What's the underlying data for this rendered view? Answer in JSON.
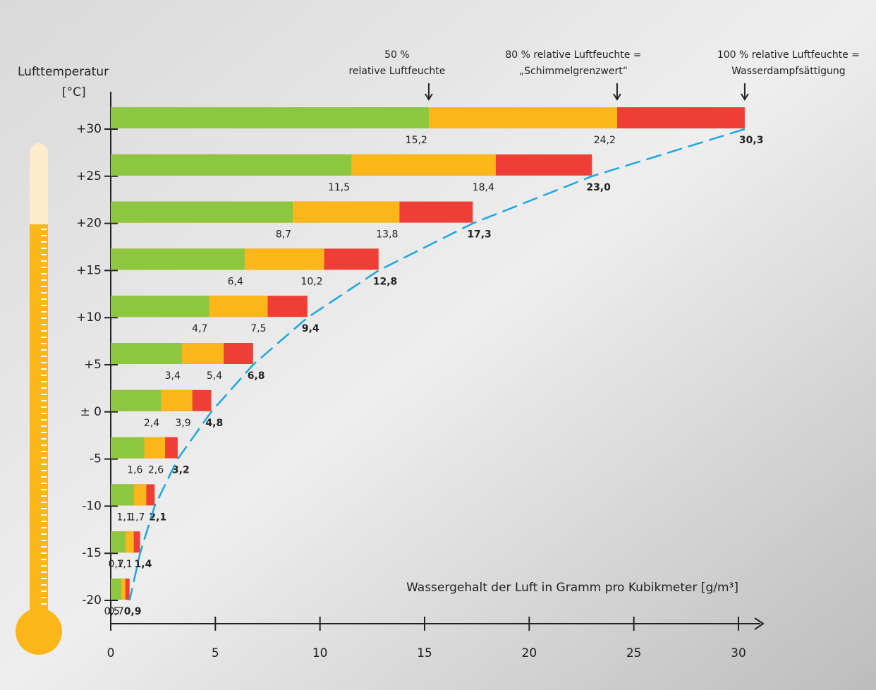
{
  "chart_data": {
    "type": "bar",
    "orientation": "horizontal",
    "overlap": true,
    "y_title": [
      "Lufttemperatur",
      "[°C]"
    ],
    "x_title": "Wassergehalt der Luft in Gramm pro Kubikmeter [g/m³]",
    "categories": [
      "+30",
      "+25",
      "+20",
      "+15",
      "+10",
      "+5",
      "± 0",
      "-5",
      "-10",
      "-15",
      "-20"
    ],
    "series": [
      {
        "name": [
          "50 %",
          "relative Luftfeuchte"
        ],
        "color": "#8dc63f",
        "values": [
          15.2,
          11.5,
          8.7,
          6.4,
          4.7,
          3.4,
          2.4,
          1.6,
          1.1,
          0.7,
          0.5
        ],
        "value_labels": [
          "15,2",
          "11,5",
          "8,7",
          "6,4",
          "4,7",
          "3,4",
          "2,4",
          "1,6",
          "1,1",
          "0,7",
          "0,5"
        ]
      },
      {
        "name": [
          "80 % relative Luftfeuchte =",
          "„Schimmelgrenzwert“"
        ],
        "color": "#fbb61a",
        "values": [
          24.2,
          18.4,
          13.8,
          10.2,
          7.5,
          5.4,
          3.9,
          2.6,
          1.7,
          1.1,
          0.7
        ],
        "value_labels": [
          "24,2",
          "18,4",
          "13,8",
          "10,2",
          "7,5",
          "5,4",
          "3,9",
          "2,6",
          "1,7",
          "1,1",
          "0,7"
        ]
      },
      {
        "name": [
          "100 % relative Luftfeuchte =",
          "Wasserdampfsättigung"
        ],
        "color": "#ef3e36",
        "values": [
          30.3,
          23,
          17.3,
          12.8,
          9.4,
          6.8,
          4.8,
          3.2,
          2.1,
          1.4,
          0.9
        ],
        "value_labels": [
          "30,3",
          "23,0",
          "17,3",
          "12,8",
          "9,4",
          "6,8",
          "4,8",
          "3,2",
          "2,1",
          "1,4",
          "0,9"
        ]
      }
    ],
    "curve_color": "#1ca7e0",
    "xlim": [
      0,
      30
    ],
    "xticks": [
      0,
      5,
      10,
      15,
      20,
      25,
      30
    ]
  }
}
